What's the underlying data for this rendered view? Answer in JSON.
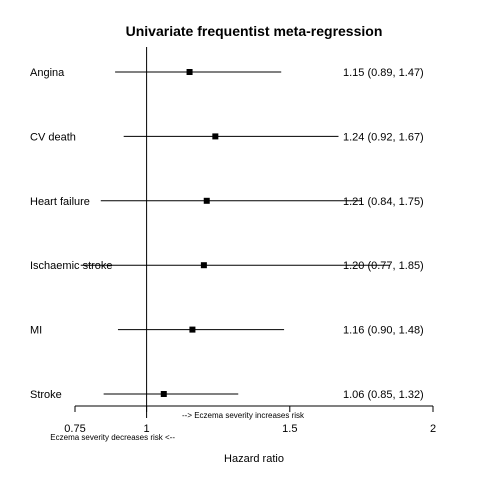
{
  "chart_data": {
    "type": "forest",
    "title": "Univariate frequentist meta-regression",
    "xlabel": "Hazard ratio",
    "xlim": [
      0.75,
      2
    ],
    "x_ticks": [
      "0.75",
      "1",
      "1.5",
      "2"
    ],
    "reference_line": 1,
    "annotations": {
      "right": "--> Eczema severity increases risk",
      "left": "Eczema severity decreases risk <--"
    },
    "rows": [
      {
        "label": "Angina",
        "estimate": 1.15,
        "lower": 0.89,
        "upper": 1.47,
        "text": "1.15  (0.89, 1.47)"
      },
      {
        "label": "CV death",
        "estimate": 1.24,
        "lower": 0.92,
        "upper": 1.67,
        "text": "1.24  (0.92, 1.67)"
      },
      {
        "label": "Heart failure",
        "estimate": 1.21,
        "lower": 0.84,
        "upper": 1.75,
        "text": "1.21  (0.84, 1.75)"
      },
      {
        "label": "Ischaemic stroke",
        "estimate": 1.2,
        "lower": 0.77,
        "upper": 1.85,
        "text": "1.20  (0.77, 1.85)"
      },
      {
        "label": "MI",
        "estimate": 1.16,
        "lower": 0.9,
        "upper": 1.48,
        "text": "1.16  (0.90, 1.48)"
      },
      {
        "label": "Stroke",
        "estimate": 1.06,
        "lower": 0.85,
        "upper": 1.32,
        "text": "1.06  (0.85, 1.32)"
      }
    ],
    "grid": false,
    "legend": "none"
  }
}
